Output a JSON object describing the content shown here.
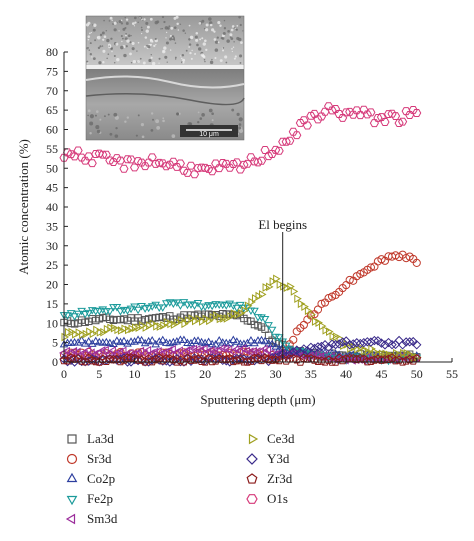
{
  "chart_data": {
    "type": "scatter",
    "xlabel": "Sputtering depth (μm)",
    "ylabel": "Atomic concentration (%)",
    "xlim": [
      0,
      55
    ],
    "ylim": [
      0,
      80
    ],
    "xticks": [
      "0",
      "5",
      "10",
      "15",
      "20",
      "25",
      "30",
      "35",
      "40",
      "45",
      "50",
      "55"
    ],
    "yticks": [
      "0",
      "5",
      "10",
      "15",
      "20",
      "25",
      "30",
      "35",
      "40",
      "45",
      "50",
      "55",
      "60",
      "65",
      "70",
      "75",
      "80"
    ],
    "annotation": {
      "text": "El begins",
      "x": 31
    },
    "inset": {
      "scale_label": "10 μm"
    },
    "series": [
      {
        "name": "La3d",
        "marker": "square",
        "color": "#555555",
        "x": [
          0,
          5,
          10,
          15,
          20,
          25,
          28,
          30,
          32,
          35,
          40,
          45,
          50
        ],
        "y": [
          10,
          11,
          11,
          11.5,
          12,
          12,
          9,
          5,
          3,
          2,
          1.5,
          1.5,
          1.5
        ]
      },
      {
        "name": "Sr3d",
        "marker": "circle",
        "color": "#c0392b",
        "x": [
          0,
          10,
          20,
          25,
          28,
          30,
          31,
          32,
          35,
          38,
          40,
          43,
          46,
          48,
          50
        ],
        "y": [
          2,
          2,
          2,
          2.5,
          2,
          1,
          2,
          5,
          12,
          17,
          20,
          24,
          27,
          27.5,
          26
        ]
      },
      {
        "name": "Co2p",
        "marker": "triangle-up",
        "color": "#2c3e9e",
        "x": [
          0,
          10,
          20,
          25,
          28,
          30,
          32,
          35,
          40,
          45,
          50
        ],
        "y": [
          5,
          5,
          5,
          5,
          5,
          4,
          3,
          2,
          1.5,
          1,
          1
        ]
      },
      {
        "name": "Fe2p",
        "marker": "triangle-down",
        "color": "#1a9a9a",
        "x": [
          0,
          5,
          10,
          15,
          20,
          25,
          27,
          29,
          30,
          32,
          35,
          40,
          45,
          50
        ],
        "y": [
          12,
          13.5,
          14,
          15,
          15,
          14.5,
          13,
          10,
          7,
          4,
          2,
          1,
          1,
          1
        ]
      },
      {
        "name": "Sm3d",
        "marker": "triangle-left",
        "color": "#9b2d9b",
        "x": [
          0,
          10,
          20,
          25,
          28,
          30,
          32,
          35,
          40,
          45,
          50
        ],
        "y": [
          2.5,
          2.5,
          3,
          3,
          3,
          2.5,
          2,
          1.5,
          1,
          1,
          1
        ]
      },
      {
        "name": "Ce3d",
        "marker": "triangle-right",
        "color": "#a0a020",
        "x": [
          0,
          5,
          10,
          15,
          20,
          24,
          26,
          28,
          30,
          32,
          34,
          36,
          38,
          40,
          43,
          46,
          50
        ],
        "y": [
          7,
          8,
          9,
          10,
          11,
          12,
          14,
          18,
          21,
          19,
          14,
          10,
          7,
          4,
          3,
          2,
          1.5
        ]
      },
      {
        "name": "Y3d",
        "marker": "diamond",
        "color": "#3a2a8a",
        "x": [
          0,
          10,
          20,
          28,
          30,
          32,
          34,
          36,
          38,
          40,
          42,
          44,
          46,
          48,
          50
        ],
        "y": [
          0.5,
          0.5,
          0.5,
          0.5,
          1,
          2,
          3,
          4,
          4.5,
          5,
          5,
          5,
          5,
          5,
          5
        ]
      },
      {
        "name": "Zr3d",
        "marker": "pentagon",
        "color": "#8b1a1a",
        "x": [
          0,
          10,
          20,
          28,
          30,
          32,
          35,
          40,
          45,
          50
        ],
        "y": [
          0.5,
          0.5,
          0.5,
          0.5,
          0.5,
          0.5,
          0.5,
          0.5,
          0.5,
          0.5
        ]
      },
      {
        "name": "O1s",
        "marker": "hexagon",
        "color": "#d63a7a",
        "x": [
          0,
          3,
          6,
          9,
          12,
          15,
          18,
          20,
          22,
          24,
          26,
          28,
          30,
          32,
          34,
          36,
          38,
          40,
          42,
          44,
          46,
          48,
          50
        ],
        "y": [
          54,
          53,
          52,
          51,
          52,
          51,
          50,
          49,
          50,
          50,
          51,
          53,
          55,
          58,
          61,
          64,
          65,
          64,
          64,
          63,
          63,
          63,
          64
        ]
      }
    ],
    "legend_columns": [
      [
        "La3d",
        "Sr3d",
        "Co2p",
        "Fe2p",
        "Sm3d"
      ],
      [
        "Ce3d",
        "Y3d",
        "Zr3d",
        "O1s"
      ]
    ]
  }
}
